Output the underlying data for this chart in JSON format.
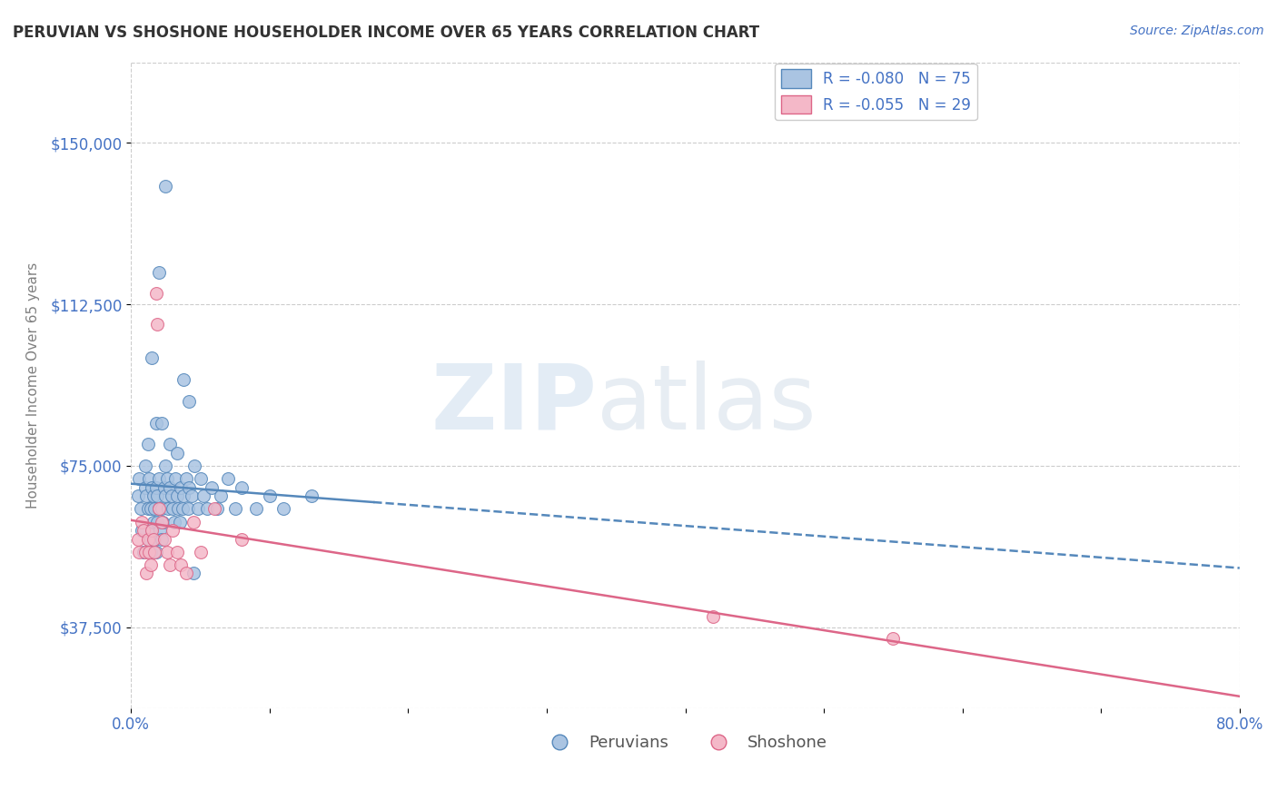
{
  "title": "PERUVIAN VS SHOSHONE HOUSEHOLDER INCOME OVER 65 YEARS CORRELATION CHART",
  "source": "Source: ZipAtlas.com",
  "ylabel": "Householder Income Over 65 years",
  "xlim": [
    0.0,
    0.8
  ],
  "ylim": [
    18750,
    168750
  ],
  "yticks": [
    37500,
    75000,
    112500,
    150000
  ],
  "ytick_labels": [
    "$37,500",
    "$75,000",
    "$112,500",
    "$150,000"
  ],
  "xticks": [
    0.0,
    0.1,
    0.2,
    0.3,
    0.4,
    0.5,
    0.6,
    0.7,
    0.8
  ],
  "xtick_labels": [
    "0.0%",
    "",
    "",
    "",
    "",
    "",
    "",
    "",
    "80.0%"
  ],
  "peruvian_color": "#aac4e2",
  "peruvian_edge": "#5588bb",
  "shoshone_color": "#f4b8c8",
  "shoshone_edge": "#dd6688",
  "trend_peruvian_color": "#5588bb",
  "trend_shoshone_color": "#dd6688",
  "legend_label_1": "R = -0.080   N = 75",
  "legend_label_2": "R = -0.055   N = 29",
  "watermark_zip": "ZIP",
  "watermark_atlas": "atlas",
  "background_color": "#ffffff",
  "peruvians_x": [
    0.005,
    0.006,
    0.007,
    0.008,
    0.009,
    0.01,
    0.01,
    0.011,
    0.012,
    0.012,
    0.013,
    0.013,
    0.014,
    0.014,
    0.015,
    0.015,
    0.016,
    0.016,
    0.017,
    0.017,
    0.018,
    0.018,
    0.019,
    0.019,
    0.02,
    0.02,
    0.021,
    0.022,
    0.022,
    0.023,
    0.024,
    0.025,
    0.025,
    0.026,
    0.027,
    0.028,
    0.029,
    0.03,
    0.031,
    0.032,
    0.033,
    0.034,
    0.035,
    0.036,
    0.037,
    0.038,
    0.04,
    0.041,
    0.042,
    0.044,
    0.046,
    0.048,
    0.05,
    0.052,
    0.055,
    0.058,
    0.062,
    0.065,
    0.07,
    0.075,
    0.08,
    0.09,
    0.1,
    0.11,
    0.13,
    0.025,
    0.02,
    0.015,
    0.038,
    0.042,
    0.018,
    0.022,
    0.028,
    0.033,
    0.045
  ],
  "peruvians_y": [
    68000,
    72000,
    65000,
    60000,
    55000,
    70000,
    75000,
    68000,
    65000,
    80000,
    72000,
    58000,
    65000,
    55000,
    60000,
    70000,
    68000,
    62000,
    58000,
    65000,
    70000,
    55000,
    62000,
    68000,
    65000,
    72000,
    60000,
    58000,
    65000,
    62000,
    70000,
    68000,
    75000,
    72000,
    65000,
    70000,
    68000,
    65000,
    62000,
    72000,
    68000,
    65000,
    62000,
    70000,
    65000,
    68000,
    72000,
    65000,
    70000,
    68000,
    75000,
    65000,
    72000,
    68000,
    65000,
    70000,
    65000,
    68000,
    72000,
    65000,
    70000,
    65000,
    68000,
    65000,
    68000,
    140000,
    120000,
    100000,
    95000,
    90000,
    85000,
    85000,
    80000,
    78000,
    50000
  ],
  "shoshone_x": [
    0.005,
    0.006,
    0.008,
    0.009,
    0.01,
    0.011,
    0.012,
    0.013,
    0.014,
    0.015,
    0.016,
    0.017,
    0.018,
    0.019,
    0.02,
    0.022,
    0.024,
    0.026,
    0.028,
    0.03,
    0.033,
    0.036,
    0.04,
    0.045,
    0.05,
    0.06,
    0.08,
    0.42,
    0.55
  ],
  "shoshone_y": [
    58000,
    55000,
    62000,
    60000,
    55000,
    50000,
    58000,
    55000,
    52000,
    60000,
    58000,
    55000,
    115000,
    108000,
    65000,
    62000,
    58000,
    55000,
    52000,
    60000,
    55000,
    52000,
    50000,
    62000,
    55000,
    65000,
    58000,
    40000,
    35000
  ]
}
